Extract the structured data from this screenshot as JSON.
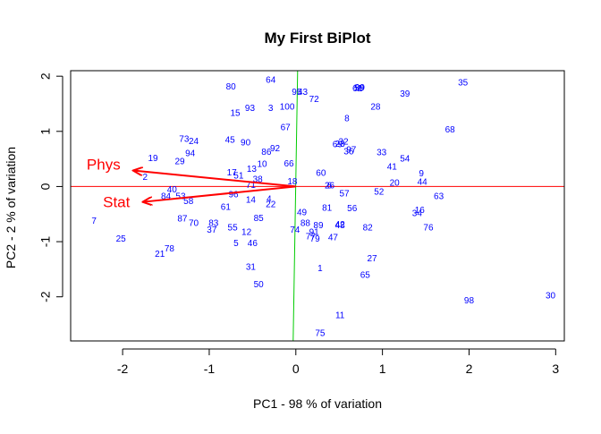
{
  "chart_data": {
    "type": "scatter",
    "title": "My First BiPlot",
    "xlabel": "PC1 - 98 % of variation",
    "ylabel": "PC2 - 2 % of variation",
    "xlim": [
      -2.6,
      3.1
    ],
    "ylim": [
      -2.8,
      2.1
    ],
    "x_ticks": [
      -2,
      -1,
      0,
      1,
      2,
      3
    ],
    "y_ticks": [
      -2,
      -1,
      0,
      1,
      2
    ],
    "grid": false,
    "reference_lines": {
      "horizontal": {
        "value": 0,
        "color": "#ff0000"
      },
      "vertical": {
        "value": 0,
        "color": "#00cc00"
      }
    },
    "point_color": "#0000ff",
    "points": [
      {
        "label": "1",
        "x": 0.28,
        "y": -1.48
      },
      {
        "label": "2",
        "x": -1.74,
        "y": 0.18
      },
      {
        "label": "3",
        "x": -0.29,
        "y": 1.43
      },
      {
        "label": "4",
        "x": -0.31,
        "y": -0.22
      },
      {
        "label": "5",
        "x": -0.69,
        "y": -1.02
      },
      {
        "label": "6",
        "x": 0.39,
        "y": 0.02
      },
      {
        "label": "7",
        "x": -2.33,
        "y": -0.62
      },
      {
        "label": "8",
        "x": 0.59,
        "y": 1.24
      },
      {
        "label": "9",
        "x": 1.45,
        "y": 0.24
      },
      {
        "label": "10",
        "x": -0.39,
        "y": 0.41
      },
      {
        "label": "11",
        "x": 0.51,
        "y": -2.33
      },
      {
        "label": "12",
        "x": -0.57,
        "y": -0.82
      },
      {
        "label": "13",
        "x": -0.51,
        "y": 0.32
      },
      {
        "label": "14",
        "x": -0.52,
        "y": -0.24
      },
      {
        "label": "15",
        "x": -0.7,
        "y": 1.34
      },
      {
        "label": "16",
        "x": 1.43,
        "y": -0.42
      },
      {
        "label": "17",
        "x": -0.74,
        "y": 0.26
      },
      {
        "label": "18",
        "x": -0.04,
        "y": 0.1
      },
      {
        "label": "19",
        "x": -1.65,
        "y": 0.52
      },
      {
        "label": "20",
        "x": 1.14,
        "y": 0.07
      },
      {
        "label": "21",
        "x": -1.57,
        "y": -1.22
      },
      {
        "label": "22",
        "x": -0.29,
        "y": -0.32
      },
      {
        "label": "23",
        "x": 0.51,
        "y": 0.78
      },
      {
        "label": "24",
        "x": -1.18,
        "y": 0.83
      },
      {
        "label": "25",
        "x": -2.02,
        "y": -0.94
      },
      {
        "label": "26",
        "x": 0.39,
        "y": 0.02
      },
      {
        "label": "27",
        "x": 0.88,
        "y": -1.3
      },
      {
        "label": "28",
        "x": 0.92,
        "y": 1.45
      },
      {
        "label": "29",
        "x": -1.34,
        "y": 0.46
      },
      {
        "label": "30",
        "x": 2.94,
        "y": -1.97
      },
      {
        "label": "31",
        "x": -0.52,
        "y": -1.45
      },
      {
        "label": "32",
        "x": 0.55,
        "y": 0.82
      },
      {
        "label": "33",
        "x": 0.99,
        "y": 0.62
      },
      {
        "label": "34",
        "x": 1.4,
        "y": -0.48
      },
      {
        "label": "35",
        "x": 1.93,
        "y": 1.89
      },
      {
        "label": "36",
        "x": 0.61,
        "y": 0.64
      },
      {
        "label": "37",
        "x": -0.97,
        "y": -0.78
      },
      {
        "label": "38",
        "x": -0.44,
        "y": 0.14
      },
      {
        "label": "39",
        "x": 1.26,
        "y": 1.69
      },
      {
        "label": "40",
        "x": -1.43,
        "y": -0.05
      },
      {
        "label": "41",
        "x": 1.11,
        "y": 0.36
      },
      {
        "label": "42",
        "x": 0.51,
        "y": -0.68
      },
      {
        "label": "43",
        "x": 0.08,
        "y": 1.72
      },
      {
        "label": "44",
        "x": 1.46,
        "y": 0.09
      },
      {
        "label": "45",
        "x": -0.76,
        "y": 0.85
      },
      {
        "label": "46",
        "x": -0.5,
        "y": -1.02
      },
      {
        "label": "47",
        "x": 0.43,
        "y": -0.92
      },
      {
        "label": "48",
        "x": 0.51,
        "y": -0.7
      },
      {
        "label": "49",
        "x": 0.07,
        "y": -0.46
      },
      {
        "label": "50",
        "x": -0.43,
        "y": -1.77
      },
      {
        "label": "51",
        "x": -0.66,
        "y": 0.2
      },
      {
        "label": "52",
        "x": 0.96,
        "y": -0.09
      },
      {
        "label": "53",
        "x": -1.33,
        "y": -0.17
      },
      {
        "label": "54",
        "x": 1.26,
        "y": 0.51
      },
      {
        "label": "55",
        "x": -0.73,
        "y": -0.74
      },
      {
        "label": "56",
        "x": 0.65,
        "y": -0.39
      },
      {
        "label": "57",
        "x": 0.56,
        "y": -0.12
      },
      {
        "label": "58",
        "x": -1.24,
        "y": -0.26
      },
      {
        "label": "59",
        "x": 0.73,
        "y": 1.79
      },
      {
        "label": "60",
        "x": 0.29,
        "y": 0.25
      },
      {
        "label": "61",
        "x": -0.81,
        "y": -0.37
      },
      {
        "label": "62",
        "x": 0.71,
        "y": 1.78
      },
      {
        "label": "63",
        "x": 1.65,
        "y": -0.17
      },
      {
        "label": "64",
        "x": -0.29,
        "y": 1.94
      },
      {
        "label": "65",
        "x": 0.8,
        "y": -1.6
      },
      {
        "label": "66",
        "x": -0.08,
        "y": 0.42
      },
      {
        "label": "67",
        "x": -0.12,
        "y": 1.08
      },
      {
        "label": "68",
        "x": 1.78,
        "y": 1.04
      },
      {
        "label": "69",
        "x": 0.48,
        "y": 0.77
      },
      {
        "label": "70",
        "x": -1.18,
        "y": -0.66
      },
      {
        "label": "71",
        "x": -0.52,
        "y": 0.03
      },
      {
        "label": "72",
        "x": 0.21,
        "y": 1.59
      },
      {
        "label": "73",
        "x": -1.29,
        "y": 0.87
      },
      {
        "label": "74",
        "x": -0.01,
        "y": -0.78
      },
      {
        "label": "75",
        "x": 0.28,
        "y": -2.65
      },
      {
        "label": "76",
        "x": 1.53,
        "y": -0.74
      },
      {
        "label": "77",
        "x": 0.17,
        "y": -0.9
      },
      {
        "label": "78",
        "x": -1.46,
        "y": -1.12
      },
      {
        "label": "79",
        "x": 0.22,
        "y": -0.94
      },
      {
        "label": "80",
        "x": -0.75,
        "y": 1.82
      },
      {
        "label": "81",
        "x": 0.36,
        "y": -0.38
      },
      {
        "label": "82",
        "x": 0.83,
        "y": -0.74
      },
      {
        "label": "83",
        "x": -0.95,
        "y": -0.66
      },
      {
        "label": "84",
        "x": -1.5,
        "y": -0.17
      },
      {
        "label": "85",
        "x": -0.43,
        "y": -0.57
      },
      {
        "label": "86",
        "x": -0.34,
        "y": 0.63
      },
      {
        "label": "87",
        "x": -1.31,
        "y": -0.58
      },
      {
        "label": "88",
        "x": 0.11,
        "y": -0.66
      },
      {
        "label": "89",
        "x": 0.26,
        "y": -0.7
      },
      {
        "label": "90",
        "x": -0.58,
        "y": 0.8
      },
      {
        "label": "91",
        "x": 0.21,
        "y": -0.82
      },
      {
        "label": "92",
        "x": -0.24,
        "y": 0.7
      },
      {
        "label": "93",
        "x": -0.53,
        "y": 1.43
      },
      {
        "label": "94",
        "x": -1.22,
        "y": 0.61
      },
      {
        "label": "95",
        "x": 0.01,
        "y": 1.72
      },
      {
        "label": "96",
        "x": -0.72,
        "y": -0.14
      },
      {
        "label": "97",
        "x": 0.64,
        "y": 0.67
      },
      {
        "label": "98",
        "x": 2.0,
        "y": -2.06
      },
      {
        "label": "99",
        "x": 0.74,
        "y": 1.8
      },
      {
        "label": "100",
        "x": -0.1,
        "y": 1.45
      }
    ],
    "loadings": [
      {
        "name": "Phys",
        "x": -1.88,
        "y": 0.29,
        "color": "#ff0000"
      },
      {
        "name": "Stat",
        "x": -1.77,
        "y": -0.28,
        "color": "#ff0000"
      }
    ]
  }
}
